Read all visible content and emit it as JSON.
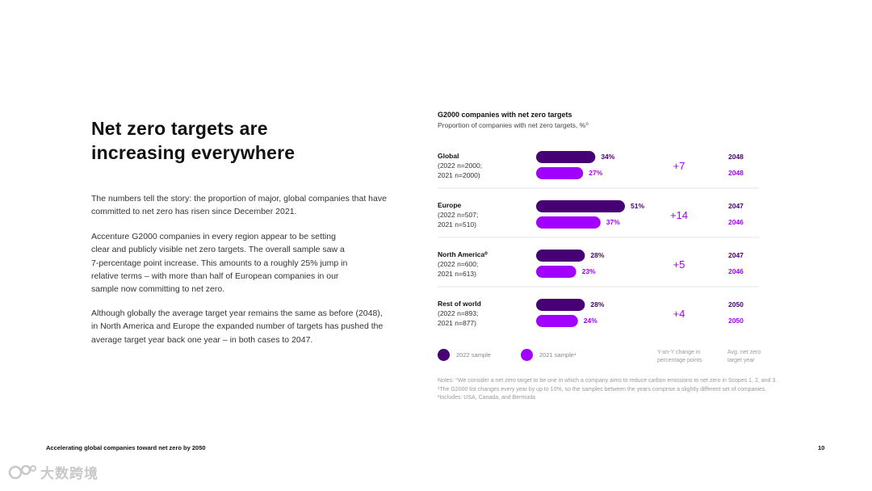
{
  "page": {
    "headline_line1": "Net zero targets are",
    "headline_line2": "increasing everywhere",
    "paragraphs": [
      "The numbers tell the story: the proportion of major, global companies that have committed to net zero has risen since December 2021.",
      "Accenture G2000 companies in every region appear to be setting clear and publicly visible net zero targets. The overall sample saw a 7-percentage point increase. This amounts to a roughly 25% jump in relative terms – with more than half of European companies in our sample now committing to net zero.",
      "Although globally the average target year remains the same as before (2048), in North America and Europe the expanded number of targets has pushed the average target year back one year – in both cases to 2047."
    ],
    "footer_title": "Accelerating global companies toward net zero by 2050",
    "page_number": "10",
    "watermark": "大数跨境"
  },
  "chart_data": {
    "type": "bar",
    "title": "G2000 companies with net zero targets",
    "subtitle": "Proportion of companies with net zero targets, %⁰",
    "unit": "%",
    "xlim": [
      0,
      51
    ],
    "categories": [
      {
        "name": "Global",
        "sample_2022": "(2022 n=2000;",
        "sample_2021": "2021 n=2000)"
      },
      {
        "name": "Europe",
        "sample_2022": "(2022 n=507;",
        "sample_2021": "2021 n=510)"
      },
      {
        "name": "North America⁰",
        "sample_2022": "(2022 n=600;",
        "sample_2021": "2021 n=613)"
      },
      {
        "name": "Rest of world",
        "sample_2022": "(2022 n=893;",
        "sample_2021": "2021 n=877)"
      }
    ],
    "series": [
      {
        "name": "2022 sample",
        "color": "#460073",
        "values": [
          34,
          51,
          28,
          28
        ]
      },
      {
        "name": "2021 sample¹",
        "color": "#a100ff",
        "values": [
          27,
          37,
          23,
          24
        ]
      }
    ],
    "yoy_change": [
      "+7",
      "+14",
      "+5",
      "+4"
    ],
    "target_year_2022": [
      "2048",
      "2047",
      "2047",
      "2050"
    ],
    "target_year_2021": [
      "2048",
      "2046",
      "2046",
      "2050"
    ],
    "change_color": "#a100ff",
    "legend": {
      "series_2022": "2022 sample",
      "series_2021": "2021 sample¹",
      "change_label": "Y-on-Y change in percentage points",
      "year_label": "Avg. net zero target year"
    },
    "notes": "Notes: ⁰We consider a net zero target to be one in which a company aims to reduce carbon emissions to net zero in Scopes 1, 2, and 3. ¹The G2000 list changes every year by up to 10%, so the samples between the years comprise a slightly different set of companies. ²Includes: USA, Canada, and Bermuda"
  }
}
